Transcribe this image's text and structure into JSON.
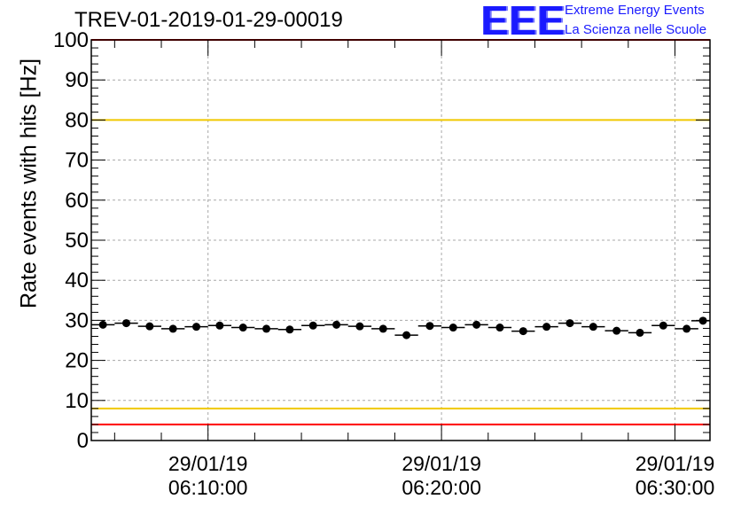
{
  "title": "TREV-01-2019-01-29-00019",
  "logo": {
    "mark": "EEE",
    "line1": "Extreme Energy Events",
    "line2": "La Scienza nelle Scuole",
    "color": "#1a1aff"
  },
  "chart_data": {
    "type": "scatter",
    "title": "TREV-01-2019-01-29-00019",
    "xlabel": "",
    "ylabel": "Rate events with hits [Hz]",
    "ylim": [
      0,
      100
    ],
    "yticks": [
      0,
      10,
      20,
      30,
      40,
      50,
      60,
      70,
      80,
      90,
      100
    ],
    "xlim_minutes": [
      5.0,
      31.5
    ],
    "xticks": [
      {
        "minute": 10,
        "date": "29/01/19",
        "time": "06:10:00"
      },
      {
        "minute": 20,
        "date": "29/01/19",
        "time": "06:20:00"
      },
      {
        "minute": 30,
        "date": "29/01/19",
        "time": "06:30:00"
      }
    ],
    "grid": true,
    "bin_width_minutes": 1,
    "series": [
      {
        "name": "rate",
        "x_minutes": [
          5.5,
          6.5,
          7.5,
          8.5,
          9.5,
          10.5,
          11.5,
          12.5,
          13.5,
          14.5,
          15.5,
          16.5,
          17.5,
          18.5,
          19.5,
          20.5,
          21.5,
          22.5,
          23.5,
          24.5,
          25.5,
          26.5,
          27.5,
          28.5,
          29.5,
          30.5,
          31.2
        ],
        "values": [
          28.9,
          29.3,
          28.5,
          27.9,
          28.4,
          28.7,
          28.2,
          27.9,
          27.7,
          28.7,
          28.9,
          28.5,
          27.9,
          26.3,
          28.6,
          28.2,
          28.9,
          28.2,
          27.3,
          28.4,
          29.3,
          28.4,
          27.4,
          26.9,
          28.7,
          27.9,
          29.9
        ],
        "color": "#000000"
      }
    ],
    "reference_lines": [
      {
        "name": "upper-limit",
        "value": 100,
        "color": "#ff0000"
      },
      {
        "name": "upper-warning",
        "value": 80,
        "color": "#f0c800"
      },
      {
        "name": "lower-warning",
        "value": 8,
        "color": "#f0c800"
      },
      {
        "name": "lower-limit",
        "value": 4,
        "color": "#ff0000"
      }
    ]
  }
}
